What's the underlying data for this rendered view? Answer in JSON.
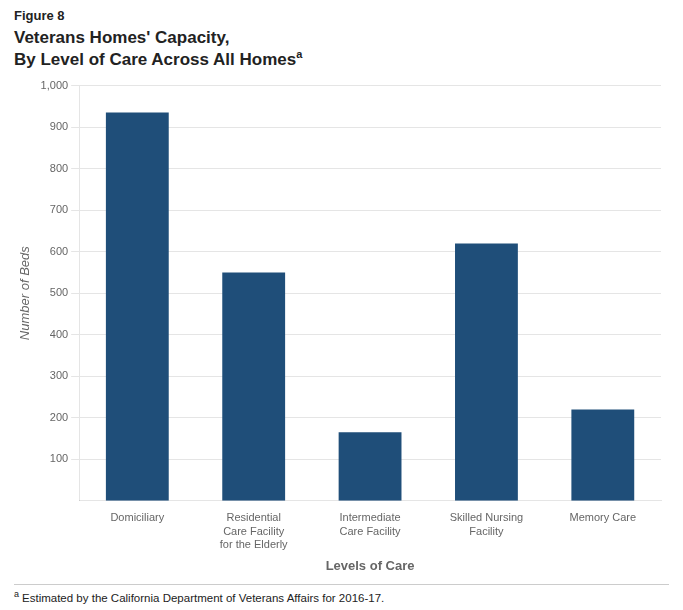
{
  "chart_data": {
    "type": "bar",
    "title": [
      "Veterans Homes' Capacity,",
      "By Level of Care Across All Homes"
    ],
    "annotations": [
      "Figure 8",
      "a",
      "a",
      "Estimated by the California Department of Veterans Affairs for 2016-17."
    ],
    "categories": [
      "Domiciliary",
      "Residential\nCare Facility\nfor the Elderly",
      "Intermediate\nCare Facility",
      "Skilled Nursing\nFacility",
      "Memory Care"
    ],
    "values": [
      935,
      550,
      165,
      620,
      220
    ],
    "color": "#1F4E79",
    "xlabel": "Levels of Care",
    "ylabel": "Number of Beds",
    "ylim": [
      0,
      1000
    ],
    "yticks": [
      100,
      200,
      300,
      400,
      500,
      600,
      700,
      800,
      900,
      {
        "value": 1000,
        "label": "1,000"
      }
    ],
    "grid": true
  }
}
